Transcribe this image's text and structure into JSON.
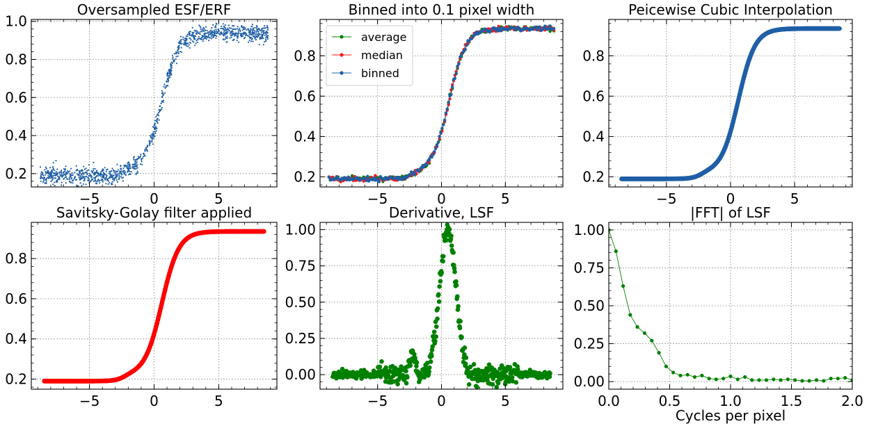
{
  "figure": {
    "background": "#ffffff",
    "grid_color": "#9a9a9a"
  },
  "chart_data": [
    {
      "id": "p1",
      "type": "scatter",
      "title": "Oversampled ESF/ERF",
      "xlabel": "",
      "ylabel": "",
      "xlim": [
        -9.5,
        9.5
      ],
      "ylim": [
        0.13,
        1.01
      ],
      "xticks": [
        -5,
        0,
        5
      ],
      "xticklabels": [
        "−5",
        "0",
        "5"
      ],
      "yticks": [
        0.2,
        0.4,
        0.6,
        0.8,
        1.0
      ],
      "yticklabels": [
        "0.2",
        "0.4",
        "0.6",
        "0.8",
        "1.0"
      ],
      "grid": true,
      "series": [
        {
          "color": "#1f5fa6",
          "marker": "dot",
          "description": "noisy edge spread samples",
          "curve": {
            "x_range": [
              -8.8,
              8.8
            ],
            "n": 1200,
            "base": 0.19,
            "top": 0.94,
            "center": 0.6,
            "width": 1.45,
            "bump_center": -2.3,
            "bump_height": 0.03,
            "noise": 0.022
          }
        }
      ]
    },
    {
      "id": "p2",
      "type": "line",
      "title": "Binned into 0.1 pixel width",
      "xlabel": "",
      "ylabel": "",
      "xlim": [
        -9.5,
        9.5
      ],
      "ylim": [
        0.15,
        0.98
      ],
      "xticks": [
        -5,
        0,
        5
      ],
      "xticklabels": [
        "−5",
        "0",
        "5"
      ],
      "yticks": [
        0.2,
        0.4,
        0.6,
        0.8
      ],
      "yticklabels": [
        "0.2",
        "0.4",
        "0.6",
        "0.8"
      ],
      "grid": true,
      "legend": {
        "location": "top-left",
        "entries": [
          "average",
          "median",
          "binned"
        ]
      },
      "series": [
        {
          "name": "average",
          "color": "#008000",
          "curve": {
            "x_range": [
              -8.8,
              8.8
            ],
            "n": 176,
            "base": 0.19,
            "top": 0.935,
            "center": 0.6,
            "width": 1.45,
            "bump_center": -2.3,
            "bump_height": 0.03,
            "noise": 0.006
          }
        },
        {
          "name": "median",
          "color": "#ff1a1a",
          "curve": {
            "x_range": [
              -8.8,
              8.8
            ],
            "n": 176,
            "base": 0.19,
            "top": 0.935,
            "center": 0.6,
            "width": 1.45,
            "bump_center": -2.3,
            "bump_height": 0.03,
            "noise": 0.006
          }
        },
        {
          "name": "binned",
          "color": "#1f5fa6",
          "curve": {
            "x_range": [
              -8.8,
              8.8
            ],
            "n": 176,
            "base": 0.19,
            "top": 0.935,
            "center": 0.6,
            "width": 1.45,
            "bump_center": -2.3,
            "bump_height": 0.03,
            "noise": 0.006
          }
        }
      ]
    },
    {
      "id": "p3",
      "type": "scatter",
      "title": "Peicewise Cubic Interpolation",
      "xlabel": "",
      "ylabel": "",
      "xlim": [
        -9.5,
        9.5
      ],
      "ylim": [
        0.15,
        0.98
      ],
      "xticks": [
        -5,
        0,
        5
      ],
      "xticklabels": [
        "−5",
        "0",
        "5"
      ],
      "yticks": [
        0.2,
        0.4,
        0.6,
        0.8
      ],
      "yticklabels": [
        "0.2",
        "0.4",
        "0.6",
        "0.8"
      ],
      "grid": true,
      "series": [
        {
          "color": "#1f5fa6",
          "marker": "thick-dots",
          "curve": {
            "x_range": [
              -8.5,
              8.5
            ],
            "n": 500,
            "base": 0.19,
            "top": 0.935,
            "center": 0.6,
            "width": 1.45,
            "bump_center": -2.3,
            "bump_height": 0.03,
            "noise": 0.0
          }
        }
      ]
    },
    {
      "id": "p4",
      "type": "scatter",
      "title": "Savitsky-Golay filter applied",
      "xlabel": "",
      "ylabel": "",
      "xlim": [
        -9.5,
        9.5
      ],
      "ylim": [
        0.15,
        0.98
      ],
      "xticks": [
        -5,
        0,
        5
      ],
      "xticklabels": [
        "−5",
        "0",
        "5"
      ],
      "yticks": [
        0.2,
        0.4,
        0.6,
        0.8
      ],
      "yticklabels": [
        "0.2",
        "0.4",
        "0.6",
        "0.8"
      ],
      "grid": true,
      "series": [
        {
          "color": "#ff0000",
          "marker": "thick-dots",
          "curve": {
            "x_range": [
              -8.5,
              8.5
            ],
            "n": 500,
            "base": 0.19,
            "top": 0.935,
            "center": 0.6,
            "width": 1.45,
            "bump_center": -2.3,
            "bump_height": 0.03,
            "noise": 0.0
          }
        }
      ]
    },
    {
      "id": "p5",
      "type": "scatter",
      "title": "Derivative, LSF",
      "xlabel": "",
      "ylabel": "",
      "xlim": [
        -9.5,
        9.5
      ],
      "ylim": [
        -0.1,
        1.05
      ],
      "xticks": [
        -5,
        0,
        5
      ],
      "xticklabels": [
        "−5",
        "0",
        "5"
      ],
      "yticks": [
        0.0,
        0.25,
        0.5,
        0.75,
        1.0
      ],
      "yticklabels": [
        "0.00",
        "0.25",
        "0.50",
        "0.75",
        "1.00"
      ],
      "grid": true,
      "series": [
        {
          "color": "#008000",
          "marker": "thick-dots",
          "lsf": {
            "x_range": [
              -8.5,
              8.5
            ],
            "n": 500,
            "center": 0.5,
            "peak": 1.0,
            "width": 0.9,
            "side_bump_center": -2.3,
            "side_bump_height": 0.15,
            "noise": 0.035
          }
        }
      ]
    },
    {
      "id": "p6",
      "type": "line",
      "title": "|FFT| of LSF",
      "xlabel": "Cycles per pixel",
      "ylabel": "",
      "xlim": [
        0,
        2.0
      ],
      "ylim": [
        -0.05,
        1.05
      ],
      "xticks": [
        0.0,
        0.5,
        1.0,
        1.5,
        2.0
      ],
      "xticklabels": [
        "0.0",
        "0.5",
        "1.0",
        "1.5",
        "2.0"
      ],
      "yticks": [
        0.0,
        0.25,
        0.5,
        0.75,
        1.0
      ],
      "yticklabels": [
        "0.00",
        "0.25",
        "0.50",
        "0.75",
        "1.00"
      ],
      "grid": true,
      "series": [
        {
          "color": "#008000",
          "x": [
            0.0,
            0.059,
            0.118,
            0.176,
            0.235,
            0.294,
            0.353,
            0.412,
            0.471,
            0.529,
            0.588,
            0.647,
            0.706,
            0.765,
            0.824,
            0.882,
            0.941,
            1.0,
            1.059,
            1.118,
            1.176,
            1.235,
            1.294,
            1.353,
            1.412,
            1.471,
            1.529,
            1.588,
            1.647,
            1.706,
            1.765,
            1.824,
            1.882,
            1.941,
            2.0
          ],
          "y": [
            1.0,
            0.86,
            0.63,
            0.44,
            0.36,
            0.32,
            0.27,
            0.19,
            0.1,
            0.06,
            0.04,
            0.045,
            0.03,
            0.04,
            0.02,
            0.015,
            0.02,
            0.035,
            0.015,
            0.03,
            0.01,
            0.01,
            0.01,
            0.015,
            0.01,
            0.015,
            0.01,
            0.005,
            0.005,
            0.01,
            0.005,
            0.02,
            0.02,
            0.025,
            0.01
          ]
        }
      ]
    }
  ]
}
